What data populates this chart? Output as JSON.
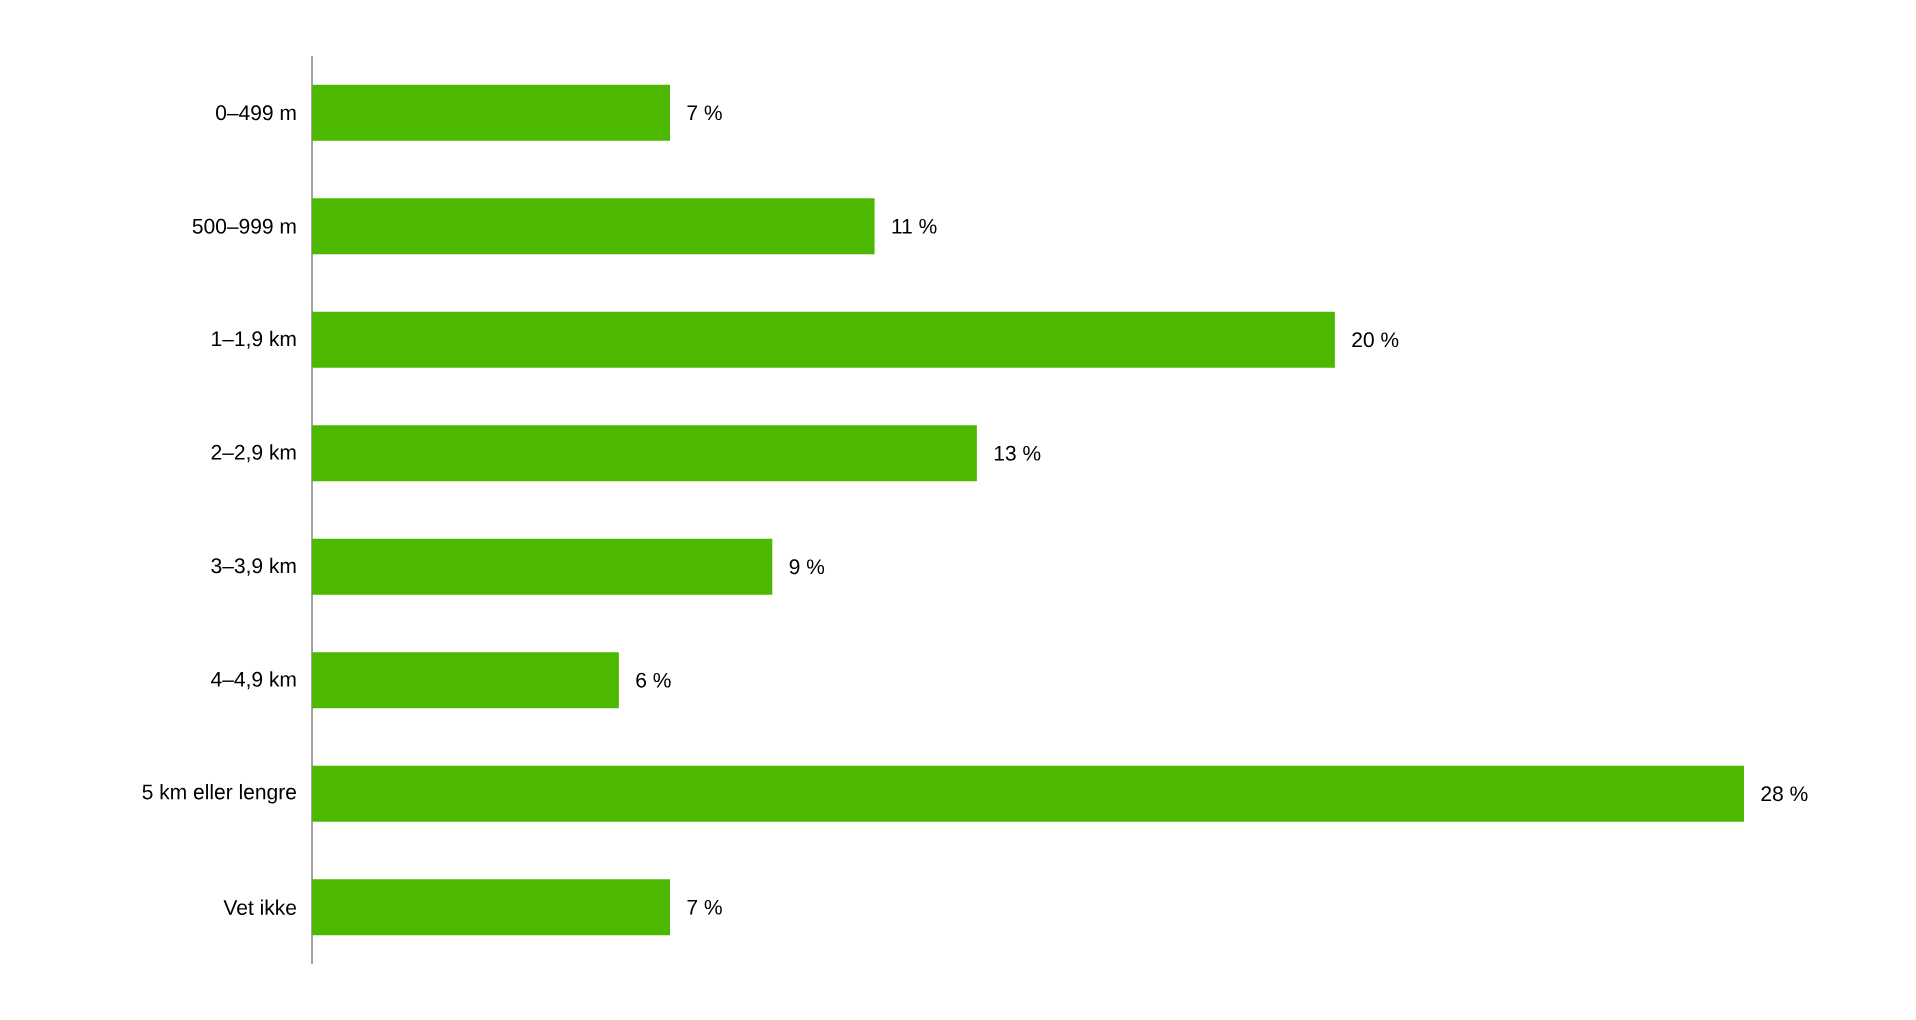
{
  "chart_data": {
    "type": "bar",
    "orientation": "horizontal",
    "relative": false,
    "categories": [
      "0–499 m",
      "500–999 m",
      "1–1,9 km",
      "2–2,9 km",
      "3–3,9 km",
      "4–4,9 km",
      "5 km eller lengre",
      "Vet ikke"
    ],
    "values": [
      7,
      11,
      20,
      13,
      9,
      6,
      28,
      7
    ],
    "value_labels": [
      "7 %",
      "11 %",
      "20 %",
      "13 %",
      "9 %",
      "6 %",
      "28 %",
      "7 %"
    ],
    "color": "#4cb800"
  }
}
